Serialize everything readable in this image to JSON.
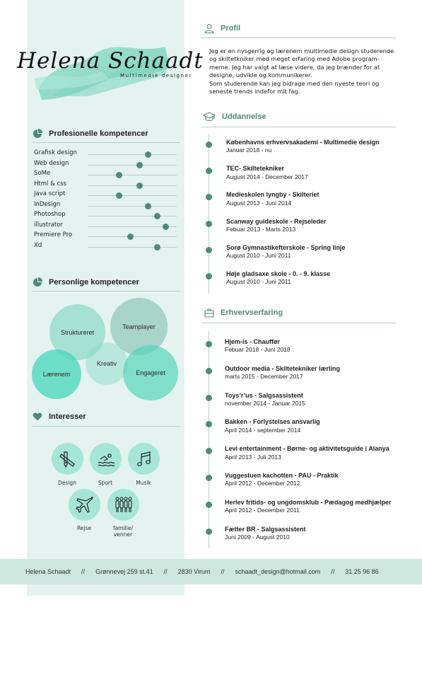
{
  "header": {
    "name": "Helena Schaadt",
    "subtitle": "Multimedie designer"
  },
  "colors": {
    "accent": "#4e8a79",
    "panel": "#e4f3ef",
    "bubble": "#a6e6d6",
    "footer": "#cfe6df"
  },
  "professional": {
    "title": "Profesionelle kompetencer",
    "skills": [
      {
        "label": "Grafisk design",
        "level": 0.68
      },
      {
        "label": "Web design",
        "level": 0.58
      },
      {
        "label": "SoMe",
        "level": 0.35
      },
      {
        "label": "Html & css",
        "level": 0.58
      },
      {
        "label": "Java script",
        "level": 0.35
      },
      {
        "label": "InDesign",
        "level": 0.68
      },
      {
        "label": "Photoshop",
        "level": 0.78
      },
      {
        "label": "illustrator",
        "level": 0.88
      },
      {
        "label": "Premiere Pro",
        "level": 0.48
      },
      {
        "label": "Xd",
        "level": 0.78
      }
    ]
  },
  "personal": {
    "title": "Personlige kompetencer",
    "bubbles": [
      "Struktureret",
      "Teamplayer",
      "Kreativ",
      "Lærenem",
      "Engageret"
    ]
  },
  "interests": {
    "title": "Interesser",
    "items": [
      {
        "label": "Design",
        "icon": "pencil-ruler-icon"
      },
      {
        "label": "Sport",
        "icon": "swimmer-icon"
      },
      {
        "label": "Musik",
        "icon": "music-note-icon"
      },
      {
        "label": "Rejse",
        "icon": "airplane-icon"
      },
      {
        "label": "familie/\nvenner",
        "icon": "people-icon"
      }
    ]
  },
  "profile": {
    "title": "Profil",
    "lines": [
      "Jeg er en nysgerrig og lærenem multimedie design studerende",
      "og skiltetkniker med meget erfaring med Adobe program-",
      "merne. Jeg har valgt at læse videre, da jeg brænder for at",
      "designe, udvikle og kommunikerer.",
      "Som studerende kan jeg bidrage med den nyeste teori og",
      "seneste trends indefor mit fag."
    ]
  },
  "education": {
    "title": "Uddannelse",
    "items": [
      {
        "title": "Københavns erhvervsakademi - Multimedie design",
        "date": "Januar 2018 - nu"
      },
      {
        "title": "TEC- Skiltetekniker",
        "date": "August 2014 - December 2017"
      },
      {
        "title": "Medieskolen lyngby - Skilteriet",
        "date": "August 2013 - Juni 2014"
      },
      {
        "title": "Scanway guideskole - Rejseleder",
        "date": "Febuar 2013 - Marts 2013"
      },
      {
        "title": "Sorø Gymnastikefterskole - Spring linje",
        "date": "August 2010 - Juni 2011"
      },
      {
        "title": "Høje gladsaxe skole - 0. - 9. klasse",
        "date": "August 2010 - Juni 2011"
      }
    ]
  },
  "experience": {
    "title": "Erhvervserfaring",
    "items": [
      {
        "title": "Hjem-is - Chauffør",
        "date": "Febuar 2018 - Juni 2018"
      },
      {
        "title": "Outdoor media - Skiltetekniker lærling",
        "date": "marts 2015 - December 2017"
      },
      {
        "title": "Toys’r’us - Salgsassistent",
        "date": "november 2014 - Januar 2015"
      },
      {
        "title": "Bakken - Forlystelses ansvarlig",
        "date": "April 2014 - september 2014"
      },
      {
        "title": "Levi entertainment - Børne- og aktivitetsguide i Alanya",
        "date": "April 2013 - Juli 2013"
      },
      {
        "title": "Vuggestuen kachotten - PAU - Praktik",
        "date": "April 2012 - December 2012"
      },
      {
        "title": "Herlev fritids- og ungdomsklub - Pædagog medhjælper",
        "date": "April 2012 - December 2011"
      },
      {
        "title": "Fætter BR - Salgsassistent",
        "date": "Juni 2009 - August 2010"
      }
    ]
  },
  "footer": {
    "name": "Helena Schaadt",
    "address": "Grønnevej 259 st.41",
    "city": "2830 Virum",
    "email": "schaadt_design@hotmail.com",
    "phone": "31 25 96 86",
    "separator": "//"
  }
}
